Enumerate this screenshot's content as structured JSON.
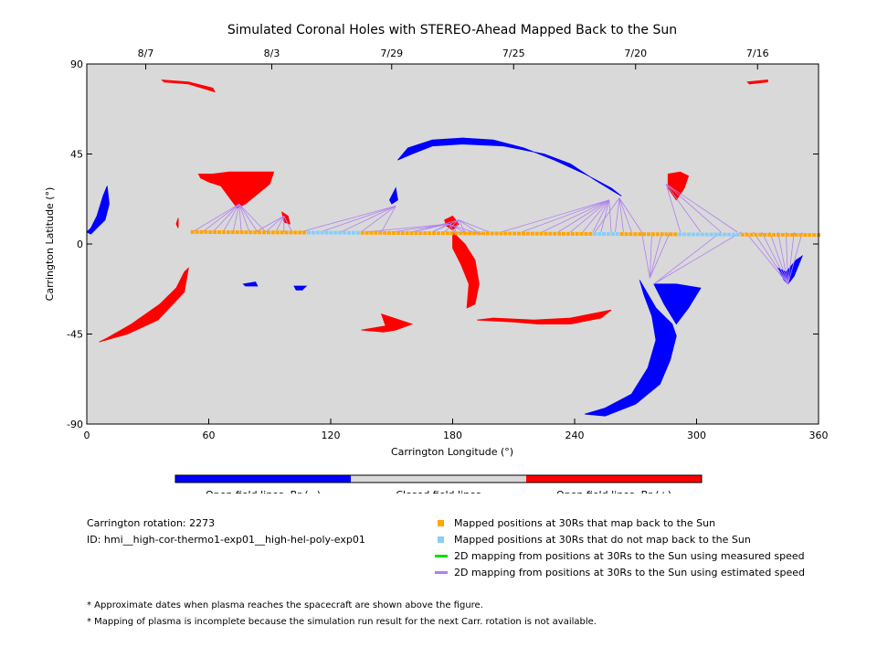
{
  "chart_data": {
    "type": "scatter",
    "title": "Simulated Coronal Holes with STEREO-Ahead Mapped Back to the Sun",
    "xlabel": "Carrington Longitude (°)",
    "ylabel": "Carrington Latitude (°)",
    "xlim": [
      0,
      360
    ],
    "ylim": [
      -90,
      90
    ],
    "x_ticks": [
      0,
      60,
      120,
      180,
      240,
      300,
      360
    ],
    "y_ticks": [
      -90,
      -45,
      0,
      45,
      90
    ],
    "top_axis": {
      "labels": [
        "8/7",
        "8/3",
        "7/29",
        "7/25",
        "7/20",
        "7/16"
      ],
      "longitudes": [
        29,
        91,
        150,
        210,
        270,
        330
      ]
    },
    "background_color": "#d9d9d9",
    "colorbar": {
      "labels": [
        "Open field lines, Br (−)",
        "Closed field lines",
        "Open field lines, Br (+)"
      ],
      "colors": [
        "#0000ff",
        "#d9d9d9",
        "#ff0000"
      ]
    },
    "coronal_holes": [
      {
        "polarity": "negative",
        "color": "#0000ff",
        "outline": [
          [
            0,
            6
          ],
          [
            2,
            8
          ],
          [
            5,
            14
          ],
          [
            8,
            24
          ],
          [
            10,
            29
          ],
          [
            11,
            20
          ],
          [
            9,
            12
          ],
          [
            5,
            8
          ],
          [
            2,
            5
          ]
        ]
      },
      {
        "polarity": "negative",
        "color": "#0000ff",
        "outline": [
          [
            150,
            20
          ],
          [
            153,
            22
          ],
          [
            152,
            28
          ],
          [
            151,
            26
          ],
          [
            149,
            22
          ]
        ]
      },
      {
        "polarity": "negative",
        "color": "#0000ff",
        "outline": [
          [
            153,
            42
          ],
          [
            158,
            48
          ],
          [
            170,
            52
          ],
          [
            185,
            53
          ],
          [
            200,
            52
          ],
          [
            215,
            48
          ],
          [
            230,
            42
          ],
          [
            245,
            35
          ],
          [
            258,
            28
          ],
          [
            263,
            24
          ],
          [
            258,
            27
          ],
          [
            250,
            32
          ],
          [
            238,
            40
          ],
          [
            225,
            45
          ],
          [
            205,
            49
          ],
          [
            185,
            50
          ],
          [
            170,
            49
          ],
          [
            160,
            45
          ]
        ]
      },
      {
        "polarity": "negative",
        "color": "#0000ff",
        "outline": [
          [
            272,
            -18
          ],
          [
            276,
            -25
          ],
          [
            280,
            -32
          ],
          [
            288,
            -40
          ],
          [
            290,
            -46
          ],
          [
            287,
            -58
          ],
          [
            282,
            -70
          ],
          [
            270,
            -80
          ],
          [
            255,
            -86
          ],
          [
            245,
            -85
          ],
          [
            255,
            -82
          ],
          [
            268,
            -75
          ],
          [
            276,
            -62
          ],
          [
            280,
            -48
          ],
          [
            278,
            -36
          ],
          [
            274,
            -25
          ]
        ]
      },
      {
        "polarity": "negative",
        "color": "#0000ff",
        "outline": [
          [
            279,
            -20
          ],
          [
            290,
            -20
          ],
          [
            302,
            -22
          ],
          [
            296,
            -32
          ],
          [
            290,
            -40
          ],
          [
            284,
            -30
          ]
        ]
      },
      {
        "polarity": "negative",
        "color": "#0000ff",
        "outline": [
          [
            340,
            -12
          ],
          [
            343,
            -18
          ],
          [
            345,
            -20
          ],
          [
            348,
            -16
          ],
          [
            352,
            -6
          ],
          [
            349,
            -8
          ],
          [
            344,
            -14
          ]
        ]
      },
      {
        "polarity": "negative",
        "color": "#0000ff",
        "outline": [
          [
            77,
            -20
          ],
          [
            83,
            -19
          ],
          [
            84,
            -21
          ],
          [
            78,
            -21
          ]
        ]
      },
      {
        "polarity": "negative",
        "color": "#0000ff",
        "outline": [
          [
            102,
            -21
          ],
          [
            108,
            -21
          ],
          [
            106,
            -23
          ],
          [
            103,
            -23
          ]
        ]
      },
      {
        "polarity": "positive",
        "color": "#ff0000",
        "outline": [
          [
            55,
            35
          ],
          [
            62,
            35
          ],
          [
            70,
            36
          ],
          [
            80,
            36
          ],
          [
            92,
            36
          ],
          [
            90,
            30
          ],
          [
            84,
            25
          ],
          [
            78,
            20
          ],
          [
            74,
            18
          ],
          [
            71,
            22
          ],
          [
            66,
            29
          ],
          [
            60,
            31
          ],
          [
            56,
            33
          ]
        ]
      },
      {
        "polarity": "positive",
        "color": "#ff0000",
        "outline": [
          [
            6,
            -49
          ],
          [
            20,
            -45
          ],
          [
            35,
            -38
          ],
          [
            48,
            -24
          ],
          [
            50,
            -12
          ],
          [
            48,
            -14
          ],
          [
            44,
            -22
          ],
          [
            36,
            -30
          ],
          [
            22,
            -40
          ],
          [
            10,
            -47
          ]
        ]
      },
      {
        "polarity": "positive",
        "color": "#ff0000",
        "outline": [
          [
            96,
            16
          ],
          [
            99,
            14
          ],
          [
            100,
            10
          ],
          [
            97,
            11
          ]
        ]
      },
      {
        "polarity": "positive",
        "color": "#ff0000",
        "outline": [
          [
            176,
            12
          ],
          [
            180,
            14
          ],
          [
            183,
            10
          ],
          [
            180,
            7
          ],
          [
            177,
            9
          ]
        ]
      },
      {
        "polarity": "positive",
        "color": "#ff0000",
        "outline": [
          [
            180,
            6
          ],
          [
            186,
            0
          ],
          [
            191,
            -8
          ],
          [
            193,
            -20
          ],
          [
            191,
            -30
          ],
          [
            187,
            -32
          ],
          [
            188,
            -20
          ],
          [
            184,
            -10
          ],
          [
            180,
            -2
          ]
        ]
      },
      {
        "polarity": "positive",
        "color": "#ff0000",
        "outline": [
          [
            145,
            -35
          ],
          [
            160,
            -40
          ],
          [
            152,
            -43
          ],
          [
            146,
            -44
          ],
          [
            135,
            -43
          ],
          [
            147,
            -41
          ]
        ]
      },
      {
        "polarity": "positive",
        "color": "#ff0000",
        "outline": [
          [
            192,
            -38
          ],
          [
            210,
            -39
          ],
          [
            222,
            -40
          ],
          [
            238,
            -40
          ],
          [
            253,
            -37
          ],
          [
            258,
            -33
          ],
          [
            253,
            -34
          ],
          [
            238,
            -37
          ],
          [
            220,
            -38
          ],
          [
            200,
            -37
          ]
        ]
      },
      {
        "polarity": "positive",
        "color": "#ff0000",
        "outline": [
          [
            286,
            35
          ],
          [
            292,
            36
          ],
          [
            296,
            34
          ],
          [
            294,
            28
          ],
          [
            290,
            22
          ],
          [
            286,
            28
          ]
        ]
      },
      {
        "polarity": "positive",
        "color": "#ff0000",
        "outline": [
          [
            37,
            82
          ],
          [
            50,
            81
          ],
          [
            62,
            78
          ],
          [
            63,
            76
          ],
          [
            50,
            80
          ],
          [
            38,
            81
          ]
        ]
      },
      {
        "polarity": "positive",
        "color": "#ff0000",
        "outline": [
          [
            325,
            81
          ],
          [
            335,
            82
          ],
          [
            335,
            81
          ],
          [
            326,
            80
          ]
        ]
      },
      {
        "polarity": "positive",
        "color": "#ff0000",
        "outline": [
          [
            44,
            10
          ],
          [
            45,
            13
          ],
          [
            45,
            8
          ]
        ]
      }
    ],
    "mapped_positions": {
      "latitude": 6,
      "lon_start": 52,
      "lon_end": 360,
      "step": 2.2,
      "not_mapped_ranges": [
        [
          108,
          135
        ],
        [
          248,
          262
        ],
        [
          290,
          322
        ]
      ]
    },
    "estimated_speed_mapping_lines": [
      {
        "to": [
          75,
          20
        ],
        "from_lons": [
          52,
          57,
          62,
          67,
          72,
          76,
          80,
          84,
          88
        ]
      },
      {
        "to": [
          97,
          14
        ],
        "from_lons": [
          83,
          88,
          93,
          97,
          101
        ]
      },
      {
        "to": [
          152,
          19
        ],
        "from_lons": [
          105,
          115,
          125,
          135,
          145
        ]
      },
      {
        "to": [
          178,
          10
        ],
        "from_lons": [
          137,
          150,
          160,
          170,
          181,
          186,
          190
        ]
      },
      {
        "to": [
          183,
          12
        ],
        "from_lons": [
          160,
          170,
          176,
          181,
          186,
          192,
          198
        ]
      },
      {
        "to": [
          195,
          5
        ],
        "from_lons": [
          180,
          190
        ]
      },
      {
        "to": [
          257,
          22
        ],
        "from_lons": [
          204,
          214,
          224,
          232,
          238,
          244,
          249,
          253,
          258
        ]
      },
      {
        "to": [
          262,
          23
        ],
        "from_lons": [
          250,
          260,
          264,
          268,
          273
        ]
      },
      {
        "to": [
          285,
          30
        ],
        "from_lons": [
          292,
          302,
          312,
          320
        ]
      },
      {
        "to": [
          277,
          -17
        ],
        "from_lons": [
          273,
          278,
          283,
          287
        ]
      },
      {
        "to": [
          279,
          -20
        ],
        "from_lons": [
          312,
          322
        ]
      },
      {
        "to": [
          345,
          -20
        ],
        "from_lons": [
          324,
          328,
          332,
          336,
          340,
          344,
          348,
          352
        ]
      }
    ]
  },
  "legend": {
    "carrington_rotation": "Carrington rotation: 2273",
    "run_id": "ID: hmi__high-cor-thermo1-exp01__high-hel-poly-exp01",
    "items": [
      {
        "label": "Mapped positions at 30Rs that map back to the Sun",
        "color": "#ffa500",
        "kind": "square"
      },
      {
        "label": "Mapped positions at 30Rs that do not map back to the Sun",
        "color": "#87cefa",
        "kind": "square"
      },
      {
        "label": "2D mapping from positions at 30Rs to the Sun using measured speed",
        "color": "#00e000",
        "kind": "line"
      },
      {
        "label": "2D mapping from positions at 30Rs to the Sun using estimated speed",
        "color": "#b080f0",
        "kind": "line"
      }
    ]
  },
  "footnotes": [
    "* Approximate dates when plasma reaches the spacecraft are shown above the figure.",
    "* Mapping of plasma is incomplete because the simulation run result for the next Carr. rotation is not available."
  ]
}
